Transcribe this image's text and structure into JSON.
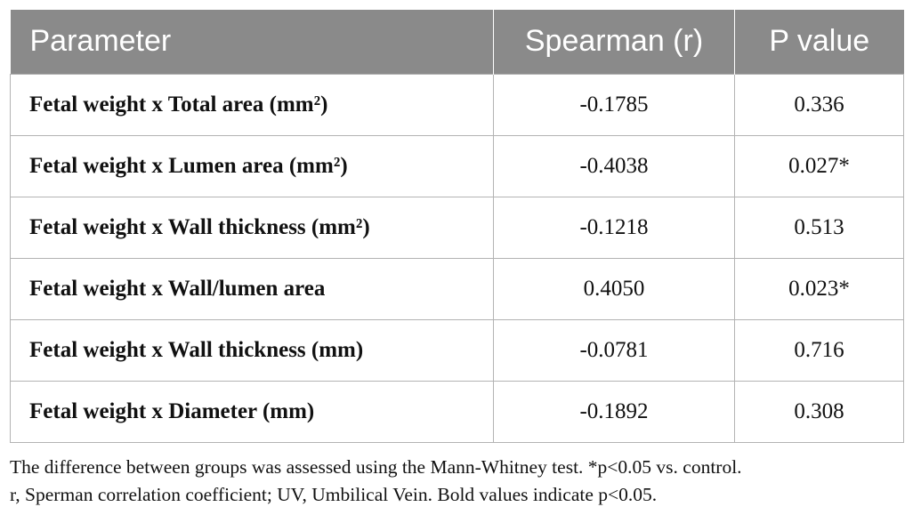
{
  "table": {
    "headers": [
      "Parameter",
      "Spearman (r)",
      "P value"
    ],
    "rows": [
      {
        "parameter": "Fetal weight x Total area (mm²)",
        "spearman": "-0.1785",
        "p_value": "0.336"
      },
      {
        "parameter": "Fetal weight x Lumen area (mm²)",
        "spearman": "-0.4038",
        "p_value": "0.027*"
      },
      {
        "parameter": "Fetal weight x Wall thickness (mm²)",
        "spearman": "-0.1218",
        "p_value": "0.513"
      },
      {
        "parameter": "Fetal weight x Wall/lumen area",
        "spearman": "0.4050",
        "p_value": "0.023*"
      },
      {
        "parameter": "Fetal weight x Wall thickness (mm)",
        "spearman": "-0.0781",
        "p_value": "0.716"
      },
      {
        "parameter": "Fetal weight x Diameter (mm)",
        "spearman": "-0.1892",
        "p_value": "0.308"
      }
    ]
  },
  "footnote": {
    "line1": "The difference between groups was assessed using the Mann-Whitney test. *p<0.05 vs. control.",
    "line2": "r, Sperman correlation coefficient; UV, Umbilical Vein. Bold values indicate p<0.05."
  },
  "colors": {
    "header_bg": "#8a8a8a",
    "header_text": "#ffffff",
    "border": "#b3b3b3"
  }
}
